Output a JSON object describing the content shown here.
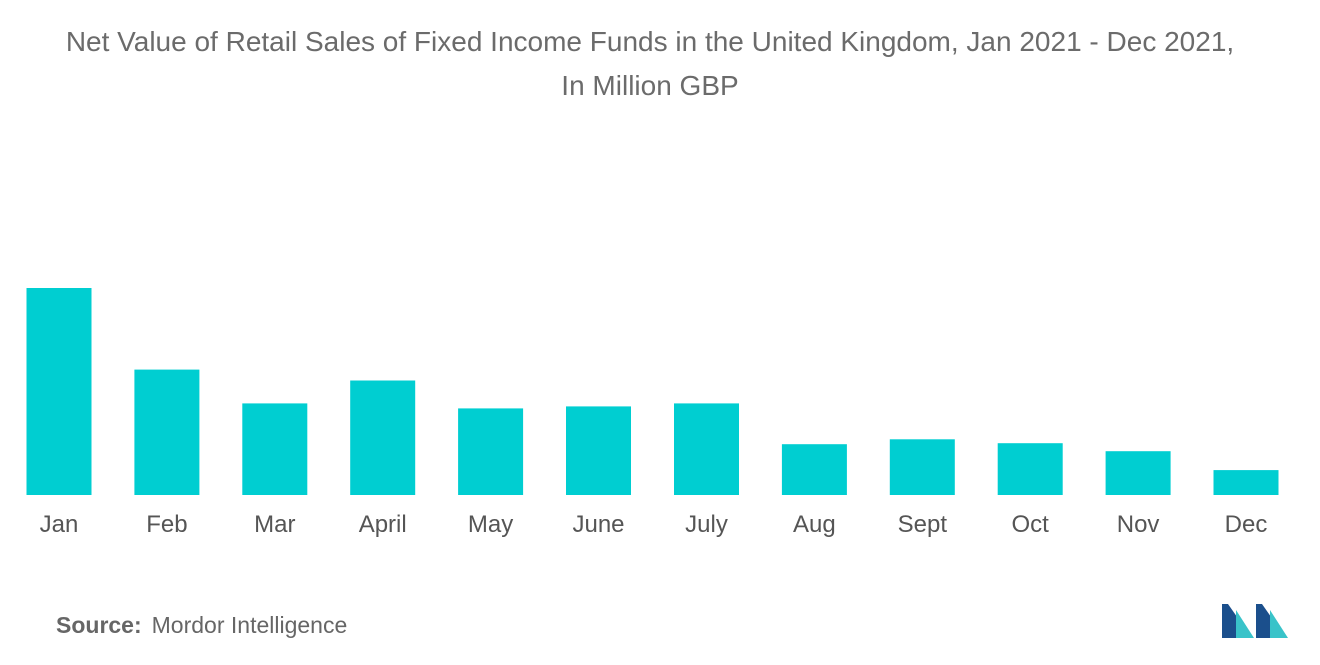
{
  "title": {
    "line1": "Net Value of Retail Sales of Fixed Income Funds in the United Kingdom, Jan 2021 - Dec 2021,",
    "line2": "In Million GBP"
  },
  "chart_data": {
    "type": "bar",
    "categories": [
      "Jan",
      "Feb",
      "Mar",
      "April",
      "May",
      "June",
      "July",
      "Aug",
      "Sept",
      "Oct",
      "Nov",
      "Dec"
    ],
    "values": [
      208,
      126,
      92,
      115,
      87,
      89,
      92,
      51,
      56,
      52,
      44,
      25
    ],
    "ylim": [
      0,
      210
    ],
    "title": "Net Value of Retail Sales of Fixed Income Funds in the United Kingdom, Jan 2021 - Dec 2021, In Million GBP",
    "xlabel": "",
    "ylabel": "",
    "grid": false,
    "bar_color": "#00CED1"
  },
  "source": {
    "label": "Source:",
    "text": "Mordor Intelligence"
  },
  "colors": {
    "title": "#6b6b6b",
    "axis_text": "#555555",
    "logo_dark": "#1b4f8c",
    "logo_light": "#39c3c9"
  }
}
